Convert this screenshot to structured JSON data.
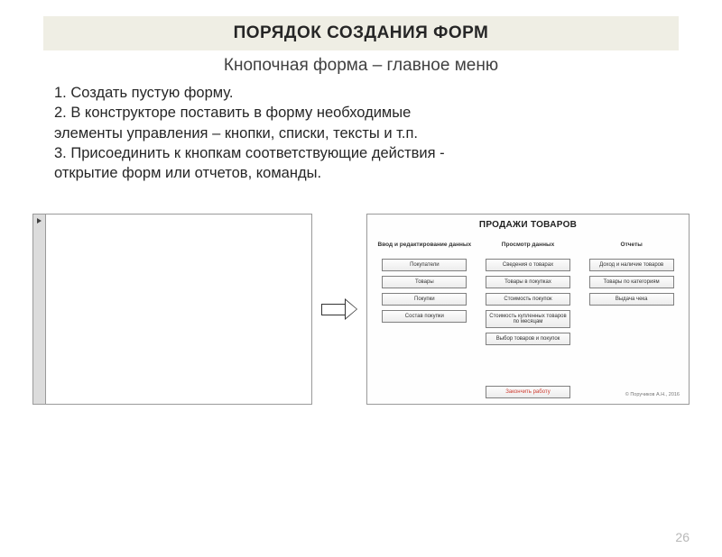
{
  "title": "ПОРЯДОК СОЗДАНИЯ ФОРМ",
  "subtitle": "Кнопочная форма – главное меню",
  "steps": [
    "1. Создать пустую форму.",
    "2. В конструкторе поставить в форму необходимые",
    "    элементы управления – кнопки, списки, тексты и т.п.",
    "3. Присоединить к кнопкам соответствующие действия -",
    "открытие форм или отчетов, команды."
  ],
  "menu": {
    "title": "ПРОДАЖИ ТОВАРОВ",
    "columns": [
      {
        "header": "Ввод и редактирование данных",
        "buttons": [
          "Покупатели",
          "Товары",
          "Покупки",
          "Состав покупки"
        ]
      },
      {
        "header": "Просмотр данных",
        "buttons": [
          "Сведения о товарах",
          "Товары в покупках",
          "Стоимость покупок",
          "Стоимость купленных товаров по месяцам",
          "Выбор товаров и покупок"
        ]
      },
      {
        "header": "Отчеты",
        "buttons": [
          "Доход и наличие товаров",
          "Товары по категориям",
          "Выдача чека"
        ]
      }
    ],
    "finish": "Закончить работу",
    "copyright": "© Поручиков А.Н., 2016"
  },
  "page_number": "26",
  "colors": {
    "title_bg": "#efeee4",
    "border": "#9a9a9a",
    "finish_color": "#cc3a2e"
  }
}
